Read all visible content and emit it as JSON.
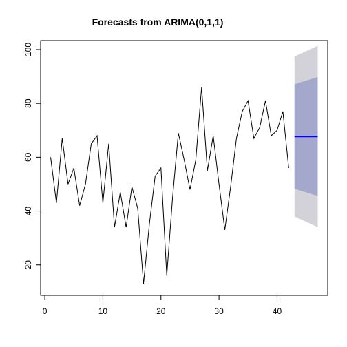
{
  "chart_data": {
    "type": "line",
    "title": "Forecasts from ARIMA(0,1,1)",
    "xlabel": "",
    "ylabel": "",
    "xlim": [
      -0.72,
      48.72
    ],
    "ylim": [
      8.68,
      103.32
    ],
    "xticks": [
      0,
      10,
      20,
      30,
      40
    ],
    "yticks": [
      20,
      40,
      60,
      80,
      100
    ],
    "grid": false,
    "legend": "none",
    "series": [
      {
        "x": [
          1,
          2,
          3,
          4,
          5,
          6,
          7,
          8,
          9,
          10,
          11,
          12,
          13,
          14,
          15,
          16,
          17,
          18,
          19,
          20,
          21,
          22,
          23,
          24,
          25,
          26,
          27,
          28,
          29,
          30,
          31,
          32,
          33,
          34,
          35,
          36,
          37,
          38,
          39,
          40,
          41,
          42
        ],
        "values": [
          60,
          43,
          67,
          50,
          56,
          42,
          50,
          65,
          68,
          43,
          65,
          34,
          47,
          34,
          49,
          41,
          13,
          35,
          53,
          56,
          16,
          45,
          69,
          59,
          48,
          59,
          86,
          55,
          68,
          50,
          33,
          49,
          67,
          77,
          81,
          67,
          71,
          81,
          68,
          70,
          77,
          56
        ],
        "color": "#000000"
      }
    ],
    "forecast": {
      "x": [
        43,
        47
      ],
      "mean": [
        67.7,
        67.7
      ],
      "lo80": [
        48.3,
        45.6
      ],
      "hi80": [
        87.1,
        89.8
      ],
      "lo95": [
        38.0,
        34.0
      ],
      "hi95": [
        97.4,
        101.4
      ],
      "mean_color": "#0000ff",
      "band80_color": "#a4a8cc",
      "band95_color": "#d2d2d8"
    }
  }
}
